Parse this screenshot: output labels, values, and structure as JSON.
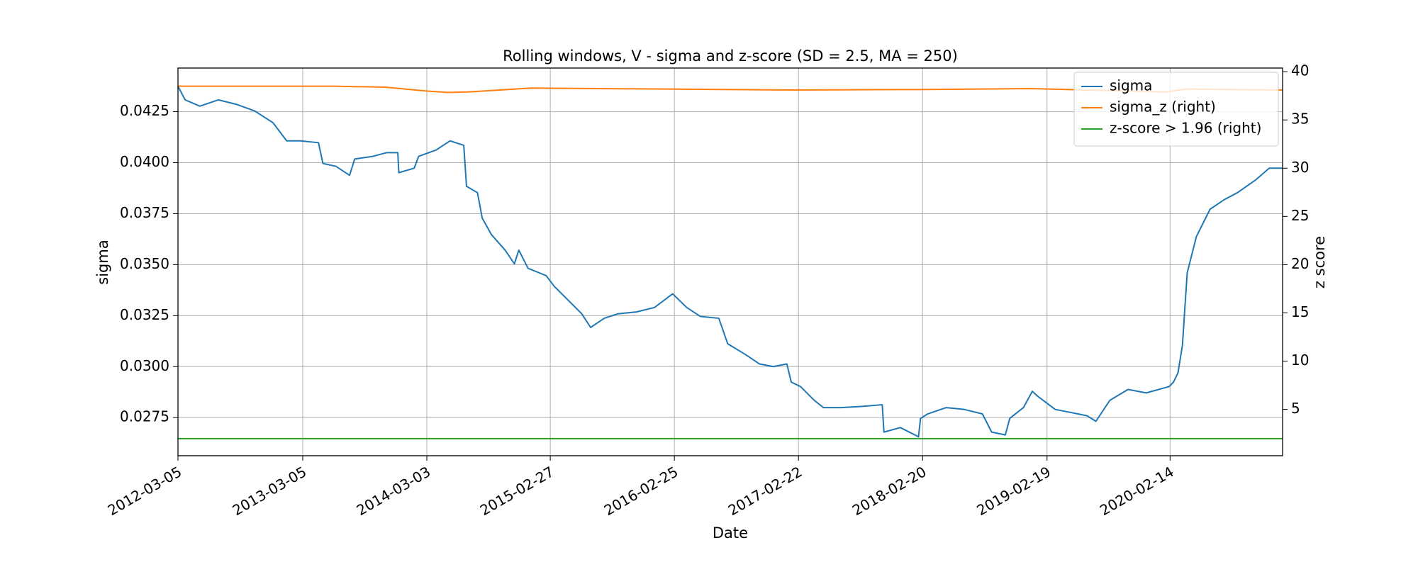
{
  "chart_data": {
    "type": "line",
    "title": "Rolling windows, V - sigma and z-score (SD = 2.5, MA = 250)",
    "x_label": "Date",
    "y_label": "sigma",
    "y2_label": "z score",
    "xlim": [
      "2012-03-05",
      "2021-01-08"
    ],
    "xticks": [
      "2012-03-05",
      "2013-03-05",
      "2014-03-03",
      "2015-02-27",
      "2016-02-25",
      "2017-02-22",
      "2018-02-20",
      "2019-02-19",
      "2020-02-14"
    ],
    "ylim": [
      0.02563,
      0.04464
    ],
    "yticks": [
      0.0275,
      {
        "value": 0.03,
        "label": "0.0300"
      },
      0.0325,
      {
        "value": 0.035,
        "label": "0.0350"
      },
      0.0375,
      {
        "value": 0.04,
        "label": "0.0400"
      },
      0.0425
    ],
    "y2lim": [
      0.19,
      40.38
    ],
    "y2ticks": [
      5,
      10,
      15,
      20,
      25,
      30,
      35,
      40
    ],
    "grid": true,
    "legend": "upper right",
    "series": [
      {
        "name": "sigma",
        "color": "#1f77b4",
        "x": [
          "2012-03-05",
          "2012-03-26",
          "2012-05-08",
          "2012-07-01",
          "2012-08-23",
          "2012-10-15",
          "2012-12-08",
          "2013-01-17",
          "2013-02-26",
          "2013-04-20",
          "2013-05-03",
          "2013-06-10",
          "2013-07-20",
          "2013-08-04",
          "2013-09-26",
          "2013-11-05",
          "2013-12-08",
          "2013-12-11",
          "2014-01-25",
          "2014-02-07",
          "2014-03-30",
          "2014-05-10",
          "2014-06-19",
          "2014-06-27",
          "2014-07-29",
          "2014-08-12",
          "2014-09-08",
          "2014-10-18",
          "2014-11-14",
          "2014-11-27",
          "2014-12-24",
          "2015-02-15",
          "2015-03-11",
          "2015-04-20",
          "2015-05-30",
          "2015-06-25",
          "2015-08-04",
          "2015-09-13",
          "2015-11-06",
          "2015-12-29",
          "2016-02-20",
          "2016-04-01",
          "2016-05-11",
          "2016-07-04",
          "2016-07-30",
          "2016-09-21",
          "2016-10-31",
          "2016-12-10",
          "2017-01-19",
          "2017-02-01",
          "2017-02-28",
          "2017-04-09",
          "2017-05-06",
          "2017-06-28",
          "2017-08-20",
          "2017-10-25",
          "2017-10-30",
          "2017-12-17",
          "2018-02-08",
          "2018-02-14",
          "2018-03-07",
          "2018-04-30",
          "2018-06-22",
          "2018-08-14",
          "2018-09-10",
          "2018-10-20",
          "2018-11-02",
          "2018-12-12",
          "2019-01-07",
          "2019-01-21",
          "2019-03-15",
          "2019-04-24",
          "2019-06-16",
          "2019-07-12",
          "2019-08-22",
          "2019-10-14",
          "2019-12-06",
          "2020-02-11",
          "2020-02-24",
          "2020-03-08",
          "2020-03-21",
          "2020-04-04",
          "2020-05-01",
          "2020-06-10",
          "2020-07-20",
          "2020-08-29",
          "2020-10-21",
          "2020-11-30",
          "2021-01-08"
        ],
        "values": [
          0.04375,
          0.04308,
          0.04277,
          0.04308,
          0.04286,
          0.04254,
          0.04196,
          0.04107,
          0.04107,
          0.04098,
          0.03996,
          0.03982,
          0.03938,
          0.04018,
          0.04031,
          0.04049,
          0.04049,
          0.03951,
          0.03973,
          0.04031,
          0.04062,
          0.04107,
          0.04085,
          0.03884,
          0.03853,
          0.03728,
          0.03647,
          0.03571,
          0.03504,
          0.03571,
          0.03482,
          0.03446,
          0.03393,
          0.03326,
          0.03259,
          0.03192,
          0.03237,
          0.03259,
          0.03268,
          0.0329,
          0.03357,
          0.0329,
          0.03246,
          0.03237,
          0.03112,
          0.03058,
          0.03013,
          0.03,
          0.03013,
          0.02924,
          0.02902,
          0.02835,
          0.02799,
          0.02799,
          0.02804,
          0.02813,
          0.02679,
          0.02701,
          0.02656,
          0.02746,
          0.02768,
          0.02799,
          0.0279,
          0.02768,
          0.02679,
          0.02665,
          0.02746,
          0.02799,
          0.02879,
          0.02857,
          0.0279,
          0.02777,
          0.02759,
          0.02732,
          0.02835,
          0.02888,
          0.02871,
          0.02902,
          0.02924,
          0.02969,
          0.03103,
          0.0346,
          0.03638,
          0.03772,
          0.03817,
          0.03853,
          0.03915,
          0.03973,
          0.03973
        ]
      },
      {
        "name": "sigma_z (right)",
        "color": "#ff7f0e",
        "axis": "y2",
        "x": [
          "2012-03-05",
          "2013-06-01",
          "2013-11-01",
          "2014-03-01",
          "2014-05-01",
          "2014-07-01",
          "2015-01-01",
          "2016-02-01",
          "2017-02-01",
          "2018-02-01",
          "2019-01-01",
          "2020-02-01",
          "2020-04-01",
          "2021-01-08"
        ],
        "values": [
          38.5,
          38.5,
          38.4,
          38.0,
          37.85,
          37.9,
          38.3,
          38.2,
          38.1,
          38.15,
          38.25,
          37.9,
          38.2,
          38.1
        ]
      },
      {
        "name": "z-score > 1.96 (right)",
        "color": "#2ca02c",
        "axis": "y2",
        "x": [
          "2012-03-05",
          "2021-01-08"
        ],
        "values": [
          1.96,
          1.96
        ]
      }
    ]
  }
}
